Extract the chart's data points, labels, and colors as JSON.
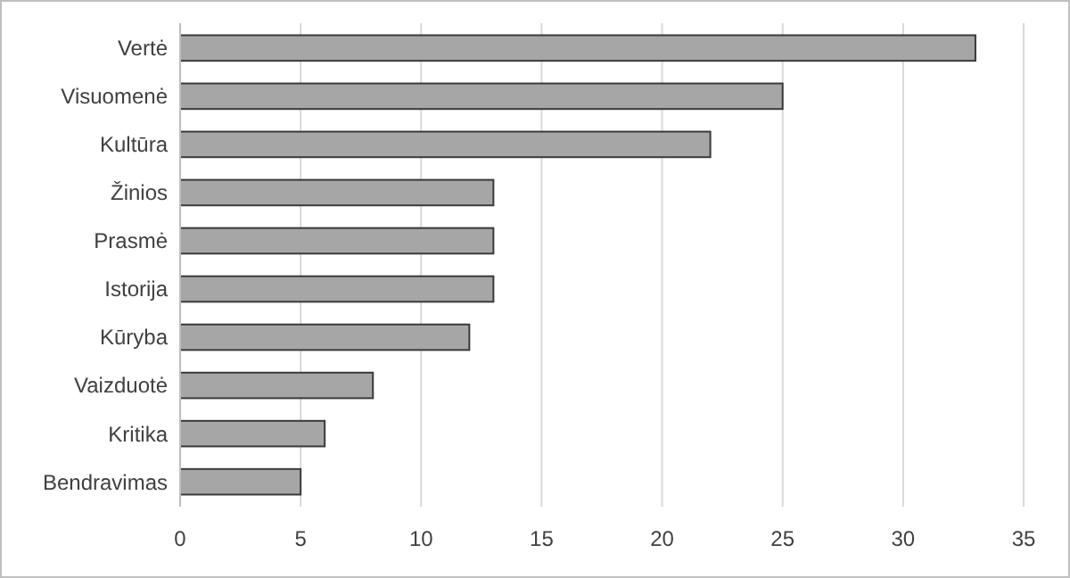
{
  "chart_data": {
    "type": "bar",
    "orientation": "horizontal",
    "categories": [
      "Vertė",
      "Visuomenė",
      "Kultūra",
      "Žinios",
      "Prasmė",
      "Istorija",
      "Kūryba",
      "Vaizduotė",
      "Kritika",
      "Bendravimas"
    ],
    "values": [
      33,
      25,
      22,
      13,
      13,
      13,
      12,
      8,
      6,
      5
    ],
    "color": "#a6a6a6",
    "xlim": [
      0,
      35
    ],
    "xticks": [
      0,
      5,
      10,
      15,
      20,
      25,
      30,
      35
    ],
    "grid": "x"
  }
}
